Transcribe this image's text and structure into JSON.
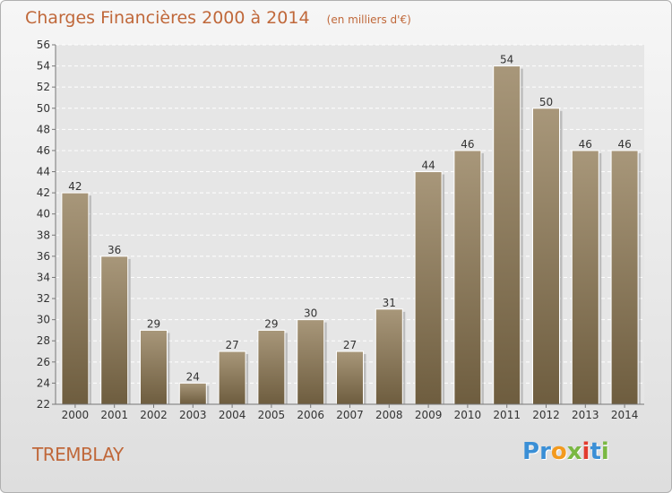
{
  "header": {
    "title": "Charges Financières 2000 à 2014",
    "subtitle": "(en milliers d'€)"
  },
  "footer": {
    "place": "TREMBLAY",
    "logo_letters": [
      "P",
      "r",
      "o",
      "x",
      "i",
      "t",
      "i"
    ]
  },
  "colors": {
    "title": "#c0683a",
    "bar_top": "#a8977a",
    "bar_bottom": "#6e5d3f",
    "logo": [
      "#3a8fd6",
      "#3a8fd6",
      "#f39a1e",
      "#7ab843",
      "#e23b2e",
      "#3a8fd6",
      "#7ab843"
    ]
  },
  "chart_data": {
    "type": "bar",
    "categories": [
      "2000",
      "2001",
      "2002",
      "2003",
      "2004",
      "2005",
      "2006",
      "2007",
      "2008",
      "2009",
      "2010",
      "2011",
      "2012",
      "2013",
      "2014"
    ],
    "values": [
      42,
      36,
      29,
      24,
      27,
      29,
      30,
      27,
      31,
      44,
      46,
      54,
      50,
      46,
      46
    ],
    "ylim": [
      22,
      56
    ],
    "yticks": [
      "22",
      "24",
      "26",
      "28",
      "30",
      "32",
      "34",
      "36",
      "38",
      "40",
      "42",
      "44",
      "46",
      "48",
      "50",
      "52",
      "54",
      "56"
    ],
    "grid": true,
    "legend": "none"
  }
}
